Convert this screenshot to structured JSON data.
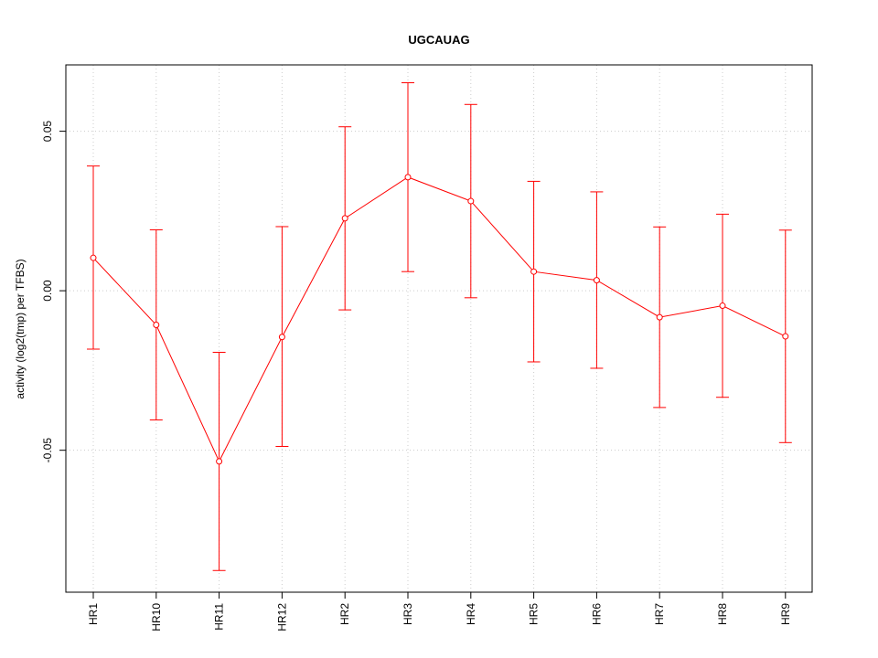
{
  "chart_data": {
    "type": "line",
    "title": "UGCAUAG",
    "xlabel": "",
    "ylabel": "activity (log2(tmp) per TFBS)",
    "categories": [
      "HR1",
      "HR10",
      "HR11",
      "HR12",
      "HR2",
      "HR3",
      "HR4",
      "HR5",
      "HR6",
      "HR7",
      "HR8",
      "HR9"
    ],
    "values": [
      0.0103,
      -0.0107,
      -0.0535,
      -0.0145,
      0.0227,
      0.0356,
      0.0281,
      0.006,
      0.0033,
      -0.0083,
      -0.0047,
      -0.0143
    ],
    "upper": [
      0.0391,
      0.0191,
      -0.0193,
      0.0201,
      0.0514,
      0.0652,
      0.0584,
      0.0343,
      0.031,
      0.02,
      0.024,
      0.019
    ],
    "lower": [
      -0.0183,
      -0.0405,
      -0.0877,
      -0.0488,
      -0.006,
      0.006,
      -0.0022,
      -0.0223,
      -0.0243,
      -0.0366,
      -0.0334,
      -0.0476
    ],
    "yticks": [
      -0.05,
      0.0,
      0.05
    ],
    "ytick_labels": [
      "-0.05",
      "0.00",
      "0.05"
    ],
    "ylim": [
      -0.0945,
      0.0708
    ],
    "grid": true,
    "color": "#ff0000",
    "grid_color": "#cccccc"
  }
}
